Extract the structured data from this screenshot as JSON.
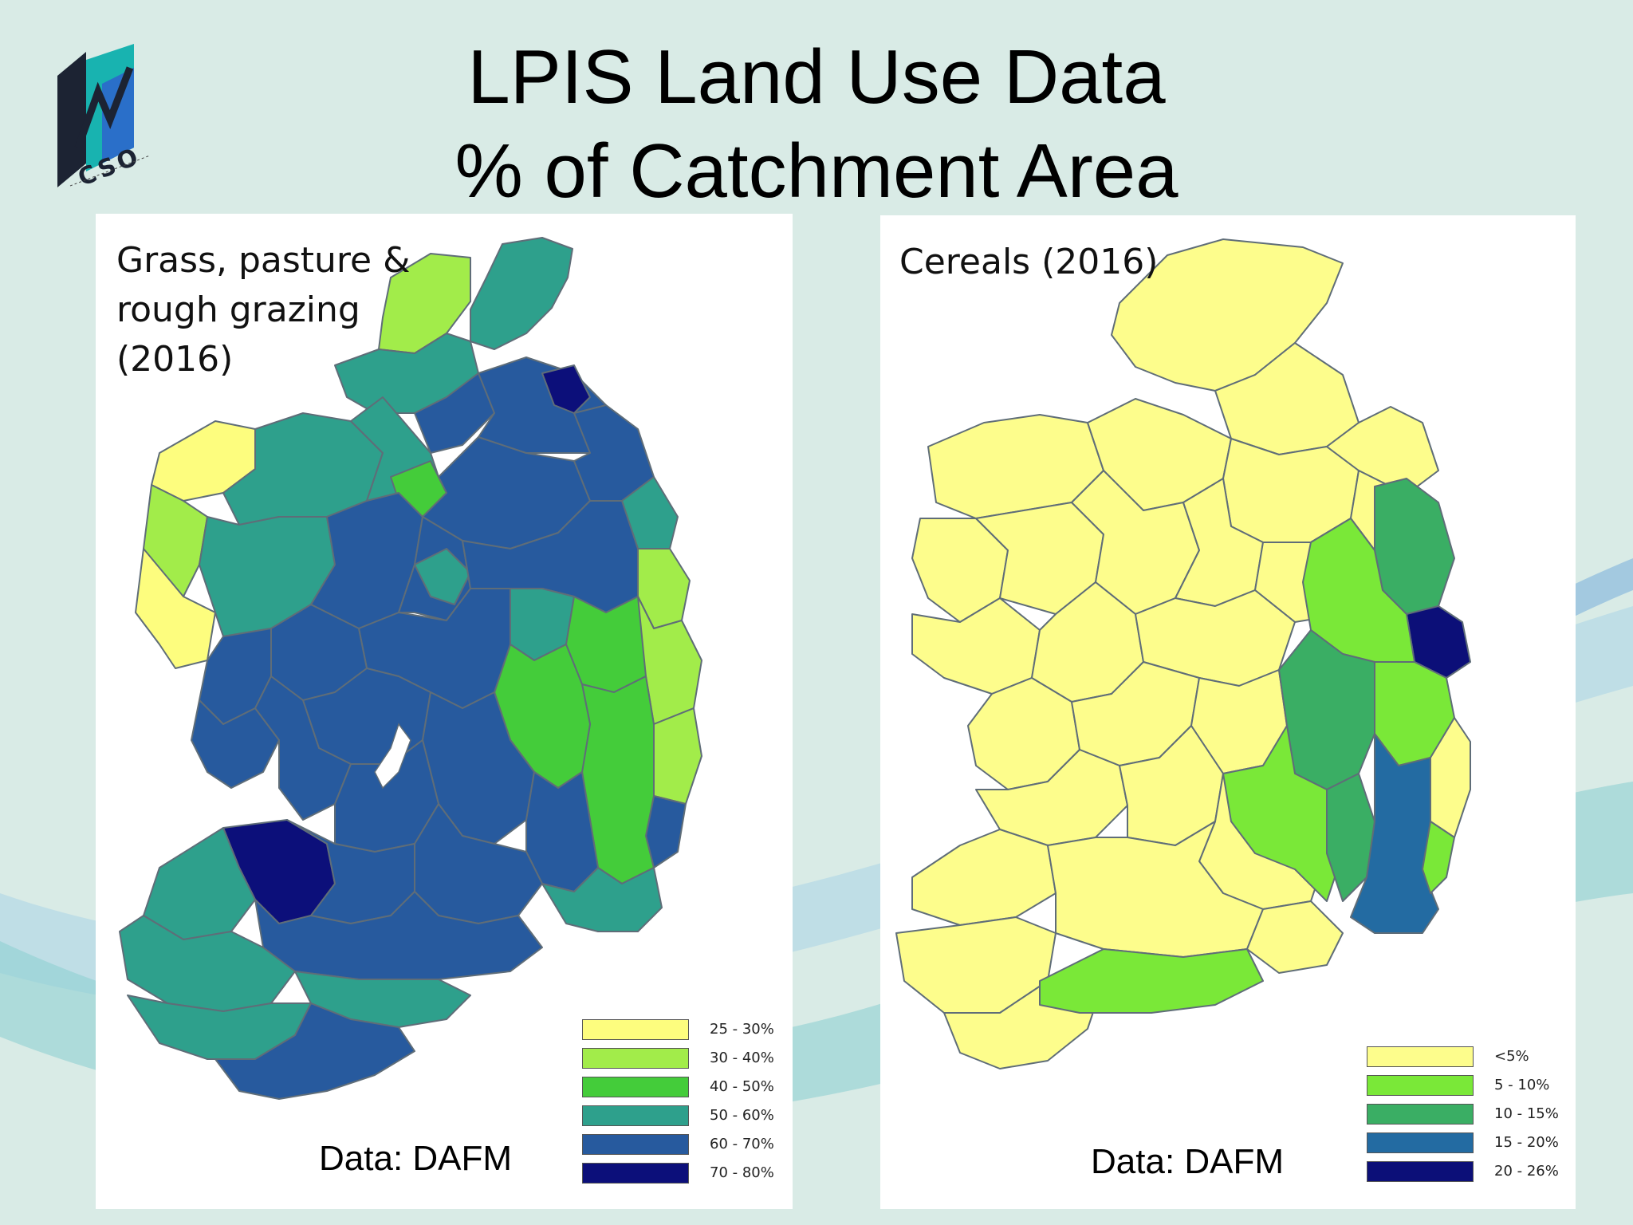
{
  "title": {
    "line1": "LPIS Land Use Data",
    "line2": "% of Catchment Area"
  },
  "logo": {
    "text": "CSO",
    "colors": {
      "dark": "#1c2333",
      "teal": "#18b3b0",
      "blue": "#2a6fc9"
    }
  },
  "maps": [
    {
      "title_lines": [
        "Grass, pasture &",
        "rough grazing",
        "(2016)"
      ],
      "source": "Data: DAFM",
      "legend": [
        {
          "label": "25 - 30%",
          "color": "#fdfd7e"
        },
        {
          "label": "30 - 40%",
          "color": "#a2ec4a"
        },
        {
          "label": "40 - 50%",
          "color": "#44cc3a"
        },
        {
          "label": "50 - 60%",
          "color": "#2ea08c"
        },
        {
          "label": "60 - 70%",
          "color": "#275a9e"
        },
        {
          "label": "70 - 80%",
          "color": "#0c0f7a"
        }
      ]
    },
    {
      "title_lines": [
        "Cereals (2016)"
      ],
      "source": "Data: DAFM",
      "legend": [
        {
          "label": "<5%",
          "color": "#fdfd8c"
        },
        {
          "label": "5 - 10%",
          "color": "#7ae838"
        },
        {
          "label": "10 - 15%",
          "color": "#3aae64"
        },
        {
          "label": "15 - 20%",
          "color": "#236ba2"
        },
        {
          "label": "20 - 26%",
          "color": "#0c0f78"
        }
      ]
    }
  ]
}
